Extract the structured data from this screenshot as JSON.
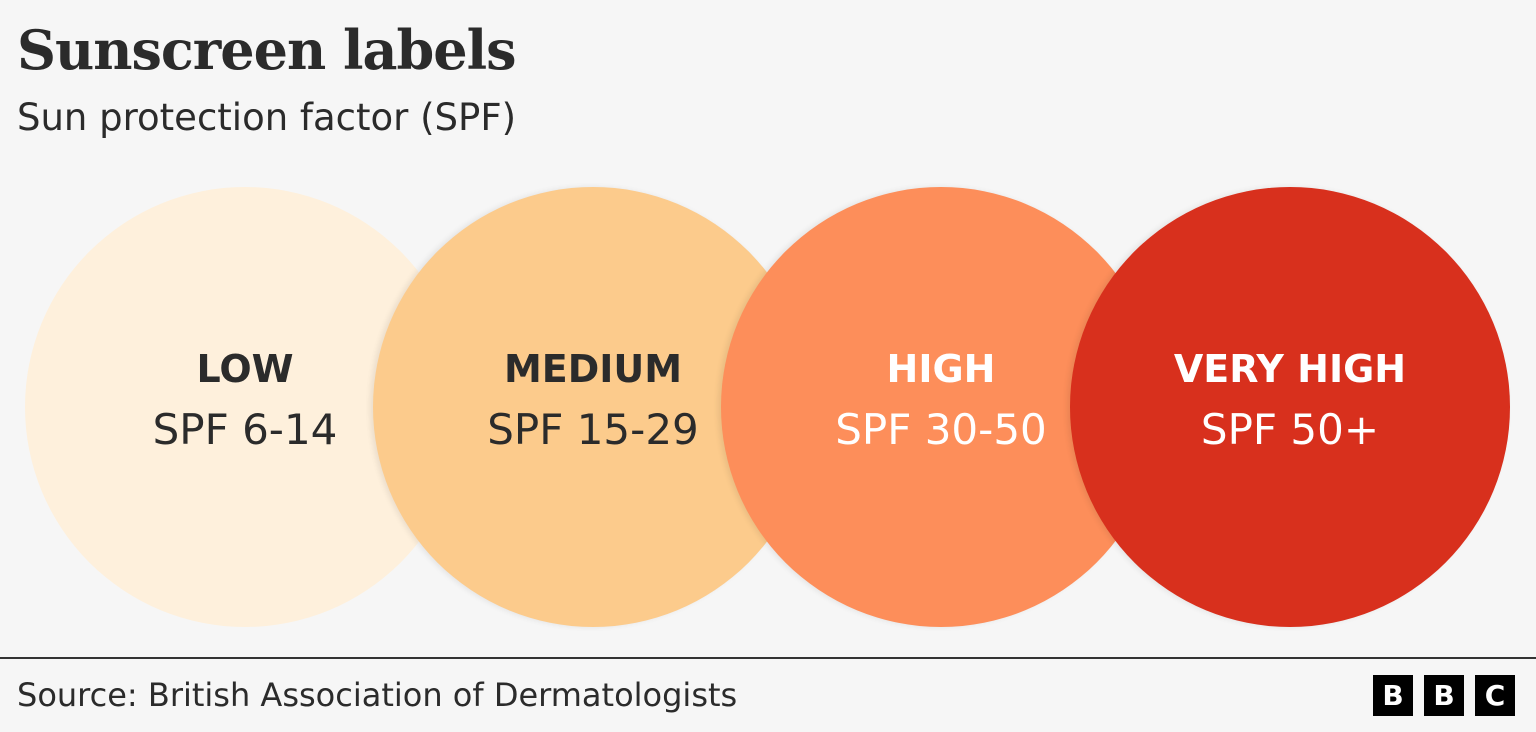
{
  "title": "Sunscreen labels",
  "subtitle": "Sun protection factor (SPF)",
  "levels": [
    {
      "label": "LOW",
      "spf": "SPF 6-14",
      "color": "#fef0dc",
      "text_color": "#2b2b2b"
    },
    {
      "label": "MEDIUM",
      "spf": "SPF 15-29",
      "color": "#fccb8c",
      "text_color": "#2b2b2b"
    },
    {
      "label": "HIGH",
      "spf": "SPF 30-50",
      "color": "#fd8e5a",
      "text_color": "#ffffff"
    },
    {
      "label": "VERY HIGH",
      "spf": "SPF 50+",
      "color": "#d8301d",
      "text_color": "#ffffff"
    }
  ],
  "source": "Source: British Association of Dermatologists",
  "logo": [
    "B",
    "B",
    "C"
  ]
}
